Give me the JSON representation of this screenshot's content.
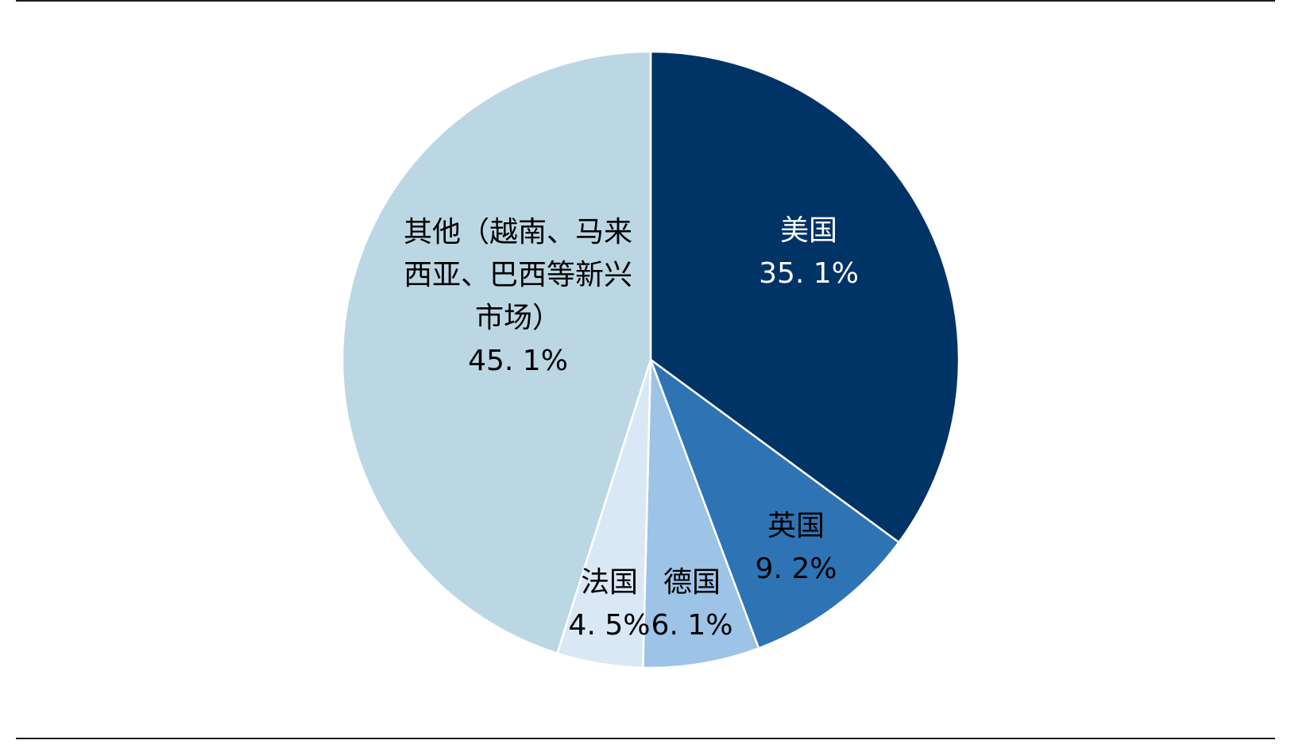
{
  "chart_data": {
    "type": "pie",
    "title": "",
    "slices": [
      {
        "name": "美国",
        "value": 35.1,
        "value_label": "35. 1%",
        "color": "#003366",
        "label_color": "#ffffff",
        "label_lines": [
          "美国"
        ]
      },
      {
        "name": "英国",
        "value": 9.2,
        "value_label": "9. 2%",
        "color": "#2e74b5",
        "label_color": "#000000",
        "label_lines": [
          "英国"
        ]
      },
      {
        "name": "德国",
        "value": 6.1,
        "value_label": "6. 1%",
        "color": "#9dc3e6",
        "label_color": "#000000",
        "label_lines": [
          "德国"
        ]
      },
      {
        "name": "法国",
        "value": 4.5,
        "value_label": "4. 5%",
        "color": "#dae8f5",
        "label_color": "#000000",
        "label_lines": [
          "法国"
        ]
      },
      {
        "name": "其他（越南、马来西亚、巴西等新兴市场）",
        "value": 45.1,
        "value_label": "45. 1%",
        "color": "#bcd7e4",
        "label_color": "#000000",
        "label_lines": [
          "其他（越南、马来",
          "西亚、巴西等新兴",
          "市场）"
        ]
      }
    ],
    "start_angle": "12 o'clock",
    "direction": "clockwise",
    "slice_border_color": "#ffffff",
    "legend": "none"
  }
}
